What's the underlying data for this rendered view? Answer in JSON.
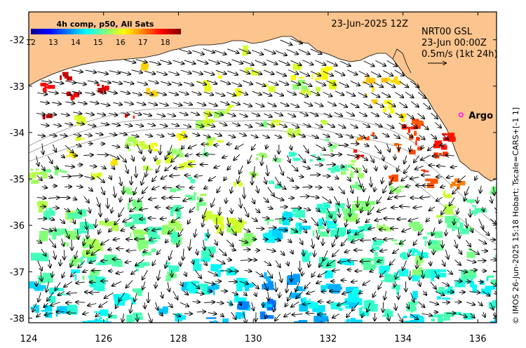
{
  "map": {
    "lon_range": [
      124,
      136.5
    ],
    "lat_range": [
      -38.1,
      -31.4
    ],
    "x_ticks": [
      "124",
      "126",
      "128",
      "130",
      "132",
      "134",
      "136"
    ],
    "y_ticks": [
      "-32",
      "-33",
      "-34",
      "-35",
      "-36",
      "-37",
      "-38"
    ],
    "land_color": "#fcc48e",
    "ocean_color": "#ffffff"
  },
  "colorbar": {
    "title": "4h comp, p50, All Sats",
    "labels": [
      "12",
      "13",
      "14",
      "15",
      "16",
      "17",
      "18"
    ],
    "min": 12,
    "max": 18.7,
    "colors": [
      "#00008f",
      "#0000ff",
      "#007fff",
      "#00ffff",
      "#7fff7f",
      "#ffff00",
      "#ff7f00",
      "#ff0000",
      "#7f0000"
    ]
  },
  "header": {
    "date": "23-Jun-2025 12Z",
    "product": "NRT00 GSL",
    "product_time": "23-Jun 00:00Z",
    "scale": "0.5m/s (1kt 24h)"
  },
  "argo": {
    "label": "Argo",
    "lon": 135.55,
    "lat": -33.62,
    "marker_color": "#ff00ff"
  },
  "credit": "© IMOS 26-Jun-2025 15:18 Hobart; Tscale=CARS+[-1 1]"
}
